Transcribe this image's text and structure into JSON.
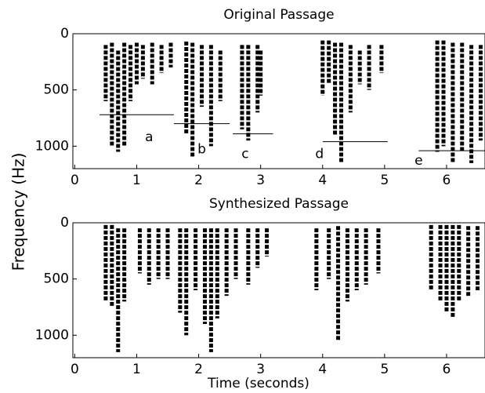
{
  "chart_data": [
    {
      "type": "spectrogram",
      "title": "Original Passage",
      "ylabel": "Frequency (Hz)",
      "xlim": [
        -0.03,
        6.62
      ],
      "ylim": [
        1200,
        0
      ],
      "xticks": [
        0,
        1,
        2,
        3,
        4,
        5,
        6
      ],
      "yticks": [
        0,
        500,
        1000
      ],
      "color": "#000000",
      "x": [
        0.5,
        0.6,
        0.7,
        0.8,
        0.9,
        1.0,
        1.1,
        1.25,
        1.4,
        1.55,
        1.8,
        1.9,
        2.05,
        2.2,
        2.35,
        2.7,
        2.8,
        2.95,
        3.0,
        4.0,
        4.1,
        4.2,
        4.3,
        4.45,
        4.6,
        4.75,
        4.95,
        5.85,
        5.95,
        6.1,
        6.25,
        6.4,
        6.55
      ],
      "low": [
        100,
        80,
        150,
        80,
        100,
        80,
        100,
        80,
        100,
        80,
        70,
        80,
        100,
        100,
        150,
        100,
        100,
        100,
        150,
        60,
        60,
        80,
        80,
        100,
        150,
        100,
        100,
        60,
        60,
        80,
        80,
        100,
        100
      ],
      "high": [
        600,
        1000,
        1050,
        1000,
        600,
        450,
        400,
        450,
        350,
        300,
        900,
        1100,
        650,
        1000,
        600,
        850,
        950,
        700,
        550,
        550,
        450,
        900,
        1150,
        700,
        450,
        500,
        350,
        1050,
        1000,
        1150,
        1050,
        1150,
        950
      ],
      "annotations": [
        {
          "text": "a",
          "x": 1.2,
          "y": 920,
          "x0": 0.4,
          "x1": 1.6,
          "ly": 720
        },
        {
          "text": "b",
          "x": 2.05,
          "y": 1030,
          "x0": 1.6,
          "x1": 2.5,
          "ly": 800
        },
        {
          "text": "c",
          "x": 2.75,
          "y": 1070,
          "x0": 2.55,
          "x1": 3.2,
          "ly": 890
        },
        {
          "text": "d",
          "x": 3.95,
          "y": 1070,
          "x0": 4.0,
          "x1": 5.05,
          "ly": 960
        },
        {
          "text": "e",
          "x": 5.55,
          "y": 1130,
          "x0": 5.55,
          "x1": 6.62,
          "ly": 1040
        }
      ]
    },
    {
      "type": "spectrogram",
      "title": "Synthesized Passage",
      "xlabel": "Time (seconds)",
      "xlim": [
        -0.03,
        6.62
      ],
      "ylim": [
        1200,
        0
      ],
      "xticks": [
        0,
        1,
        2,
        3,
        4,
        5,
        6
      ],
      "yticks": [
        0,
        500,
        1000
      ],
      "color": "#000000",
      "x": [
        0.5,
        0.6,
        0.7,
        0.8,
        1.05,
        1.2,
        1.35,
        1.5,
        1.7,
        1.8,
        1.95,
        2.1,
        2.2,
        2.3,
        2.45,
        2.6,
        2.8,
        2.95,
        3.1,
        3.9,
        4.1,
        4.25,
        4.4,
        4.55,
        4.7,
        4.9,
        5.75,
        5.9,
        6.0,
        6.1,
        6.2,
        6.35,
        6.5
      ],
      "low": [
        20,
        20,
        50,
        50,
        50,
        50,
        50,
        50,
        50,
        50,
        50,
        50,
        50,
        50,
        50,
        50,
        50,
        50,
        50,
        50,
        50,
        30,
        50,
        50,
        50,
        50,
        20,
        20,
        20,
        20,
        20,
        30,
        30
      ],
      "high": [
        700,
        750,
        1150,
        700,
        450,
        550,
        500,
        500,
        800,
        1000,
        600,
        900,
        1150,
        850,
        650,
        500,
        550,
        400,
        300,
        600,
        500,
        1050,
        700,
        600,
        550,
        450,
        600,
        700,
        800,
        850,
        700,
        650,
        600
      ]
    }
  ]
}
